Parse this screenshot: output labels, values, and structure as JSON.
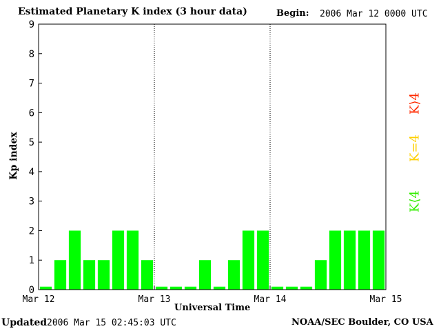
{
  "header": {
    "title": "Estimated Planetary K index (3 hour data)",
    "begin_label": "Begin:",
    "begin_value": "2006 Mar 12 0000 UTC"
  },
  "footer": {
    "updated_label": "Updated",
    "updated_value": "2006 Mar 15 02:45:03 UTC",
    "credit": "NOAA/SEC Boulder, CO USA"
  },
  "legend": {
    "high": "K⟩4",
    "equal": "K=4",
    "low": "K⟨4",
    "colors": {
      "high": "#ff2a00",
      "equal": "#ffd000",
      "low": "#33ee00"
    }
  },
  "chart_data": {
    "type": "bar",
    "xlabel": "Universal Time",
    "ylabel": "Kp index",
    "ylim": [
      0,
      9
    ],
    "yticks": [
      "0",
      "1",
      "2",
      "3",
      "4",
      "5",
      "6",
      "7",
      "8",
      "9"
    ],
    "xticks": [
      "Mar 12",
      "Mar 13",
      "Mar 14",
      "Mar 15"
    ],
    "bar_color": "#00ff00",
    "day_separators": true,
    "values": [
      0.1,
      1,
      2,
      1,
      1,
      2,
      2,
      1,
      0.1,
      0.1,
      0.1,
      1,
      0.1,
      1,
      2,
      2,
      0.1,
      0.1,
      0.1,
      1,
      2,
      2,
      2,
      2
    ]
  }
}
